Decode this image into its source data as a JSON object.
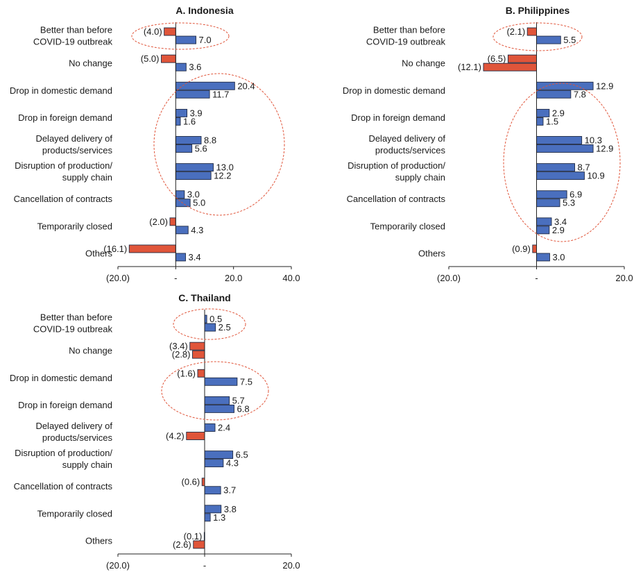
{
  "colors": {
    "positive": "#4a6fbe",
    "negative": "#e0553a",
    "outline": "#1f2a44",
    "circle": "#e0553a"
  },
  "chart_data": [
    {
      "type": "bar",
      "orientation": "horizontal",
      "title": "A. Indonesia",
      "categories": [
        "Better than before COVID-19 outbreak",
        "No change",
        "Drop in domestic demand",
        "Drop in foreign demand",
        "Delayed delivery of products/services",
        "Disruption of production/ supply chain",
        "Cancellation of contracts",
        "Temporarily closed",
        "Others"
      ],
      "series": [
        {
          "values": [
            -4.0,
            -5.0,
            20.4,
            3.9,
            8.8,
            13.0,
            3.0,
            -2.0,
            -16.1
          ]
        },
        {
          "values": [
            7.0,
            3.6,
            11.7,
            1.6,
            5.6,
            12.2,
            5.0,
            4.3,
            3.4
          ]
        }
      ],
      "data_labels": [
        [
          "(4.0)",
          "(5.0)",
          "20.4",
          "3.9",
          "8.8",
          "13.0",
          "3.0",
          "(2.0)",
          "(16.1)"
        ],
        [
          "7.0",
          "3.6",
          "11.7",
          "1.6",
          "5.6",
          "12.2",
          "5.0",
          "4.3",
          "3.4"
        ]
      ],
      "xlim": [
        -20,
        40
      ],
      "xticks": [
        -20,
        0,
        20,
        40
      ],
      "xtick_labels": [
        "(20.0)",
        "-",
        "20.0",
        "40.0"
      ]
    },
    {
      "type": "bar",
      "orientation": "horizontal",
      "title": "B. Philippines",
      "categories": [
        "Better than before COVID-19 outbreak",
        "No change",
        "Drop in domestic demand",
        "Drop in foreign demand",
        "Delayed delivery of products/services",
        "Disruption of production/ supply chain",
        "Cancellation of contracts",
        "Temporarily closed",
        "Others"
      ],
      "series": [
        {
          "values": [
            -2.1,
            -6.5,
            12.9,
            2.9,
            10.3,
            8.7,
            6.9,
            3.4,
            -0.9
          ]
        },
        {
          "values": [
            5.5,
            -12.1,
            7.8,
            1.5,
            12.9,
            10.9,
            5.3,
            2.9,
            3.0
          ]
        }
      ],
      "data_labels": [
        [
          "(2.1)",
          "(6.5)",
          "12.9",
          "2.9",
          "10.3",
          "8.7",
          "6.9",
          "3.4",
          "(0.9)"
        ],
        [
          "5.5",
          "(12.1)",
          "7.8",
          "1.5",
          "12.9",
          "10.9",
          "5.3",
          "2.9",
          "3.0"
        ]
      ],
      "xlim": [
        -20,
        20
      ],
      "xticks": [
        -20,
        0,
        20
      ],
      "xtick_labels": [
        "(20.0)",
        "-",
        "20.0"
      ]
    },
    {
      "type": "bar",
      "orientation": "horizontal",
      "title": "C. Thailand",
      "categories": [
        "Better than before COVID-19 outbreak",
        "No change",
        "Drop in domestic demand",
        "Drop in foreign demand",
        "Delayed delivery of products/services",
        "Disruption of production/ supply chain",
        "Cancellation of contracts",
        "Temporarily closed",
        "Others"
      ],
      "series": [
        {
          "values": [
            0.5,
            -3.4,
            -1.6,
            5.7,
            2.4,
            6.5,
            -0.6,
            3.8,
            -0.1
          ]
        },
        {
          "values": [
            2.5,
            -2.8,
            7.5,
            6.8,
            -4.2,
            4.3,
            3.7,
            1.3,
            -2.6
          ]
        }
      ],
      "data_labels": [
        [
          "0.5",
          "(3.4)",
          "(1.6)",
          "5.7",
          "2.4",
          "6.5",
          "(0.6)",
          "3.8",
          "(0.1)"
        ],
        [
          "2.5",
          "(2.8)",
          "7.5",
          "6.8",
          "(4.2)",
          "4.3",
          "3.7",
          "1.3",
          "(2.6)"
        ]
      ],
      "xlim": [
        -20,
        20
      ],
      "xticks": [
        -20,
        0,
        20
      ],
      "xtick_labels": [
        "(20.0)",
        "-",
        "20.0"
      ]
    }
  ]
}
